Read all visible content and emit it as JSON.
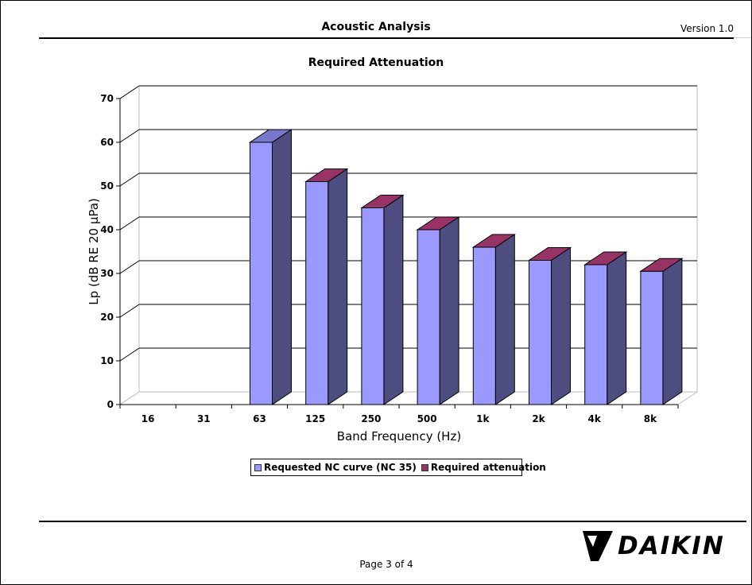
{
  "header": {
    "title": "Acoustic Analysis",
    "version": "Version 1.0"
  },
  "chart_data": {
    "type": "bar",
    "title": "Required Attenuation",
    "xlabel": "Band Frequency (Hz)",
    "ylabel": "Lp (dB RE 20 µPa)",
    "ylim": [
      0,
      70
    ],
    "yticks": [
      "0",
      "10",
      "20",
      "30",
      "40",
      "50",
      "60",
      "70"
    ],
    "categories": [
      "16",
      "31",
      "63",
      "125",
      "250",
      "500",
      "1k",
      "2k",
      "4k",
      "8k"
    ],
    "series": [
      {
        "name": "Requested NC curve (NC 35)",
        "color": "#9999ff",
        "values": [
          null,
          null,
          60,
          51,
          45,
          40,
          36,
          33,
          32,
          30.5
        ]
      },
      {
        "name": "Required attenuation",
        "color": "#993366",
        "values": [
          null,
          null,
          0,
          0,
          0,
          0,
          0,
          0,
          0,
          0
        ]
      }
    ],
    "grid": true,
    "legend": "bottom",
    "style": "3d-column"
  },
  "footer": {
    "page": "Page 3 of 4",
    "logo_text": "DAIKIN"
  }
}
